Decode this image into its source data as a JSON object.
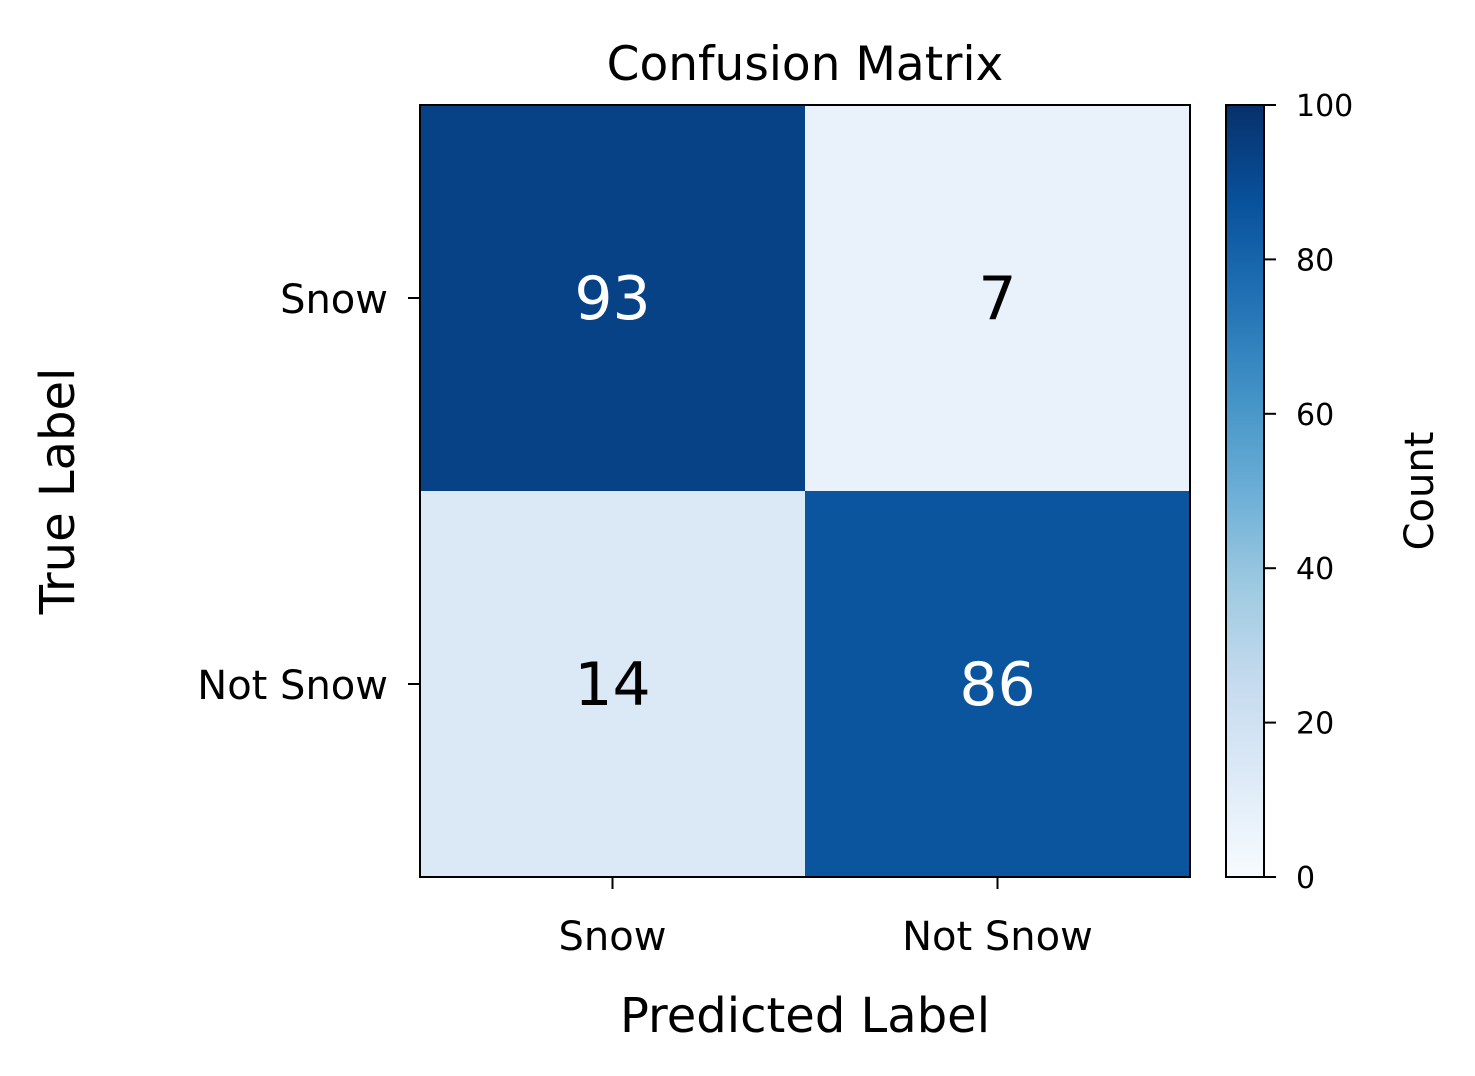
{
  "chart_data": {
    "type": "heatmap",
    "title": "Confusion Matrix",
    "xlabel": "Predicted Label",
    "ylabel": "True Label",
    "x_categories": [
      "Snow",
      "Not Snow"
    ],
    "y_categories": [
      "Snow",
      "Not Snow"
    ],
    "values": [
      [
        93,
        7
      ],
      [
        14,
        86
      ]
    ],
    "colormap": "Blues",
    "colorbar": {
      "label": "Count",
      "range": [
        0,
        100
      ],
      "ticks": [
        0,
        20,
        40,
        60,
        80,
        100
      ]
    },
    "grid": false
  }
}
